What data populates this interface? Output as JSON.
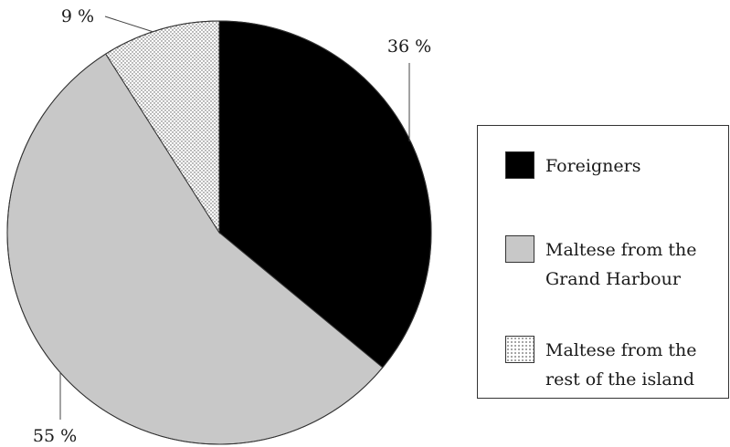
{
  "chart_data": {
    "type": "pie",
    "title": "",
    "slices": [
      {
        "label": "Foreigners",
        "value": 36,
        "display": "36 %",
        "fill": "#000000",
        "pattern": "solid"
      },
      {
        "label": "Maltese from the Grand Harbour",
        "value": 55,
        "display": "55 %",
        "fill": "#c8c8c8",
        "pattern": "solid"
      },
      {
        "label": "Maltese from the rest of the island",
        "value": 9,
        "display": "9 %",
        "fill": "#ffffff",
        "pattern": "dotted"
      }
    ],
    "start_angle_deg": 0,
    "direction": "clockwise",
    "legend_position": "right"
  },
  "legend": {
    "items": [
      {
        "label": "Foreigners"
      },
      {
        "label": "Maltese from the Grand Harbour",
        "line1": "Maltese from the",
        "line2": "Grand Harbour"
      },
      {
        "label": "Maltese from the rest of the island",
        "line1": "Maltese from the",
        "line2": "rest of the island"
      }
    ]
  }
}
